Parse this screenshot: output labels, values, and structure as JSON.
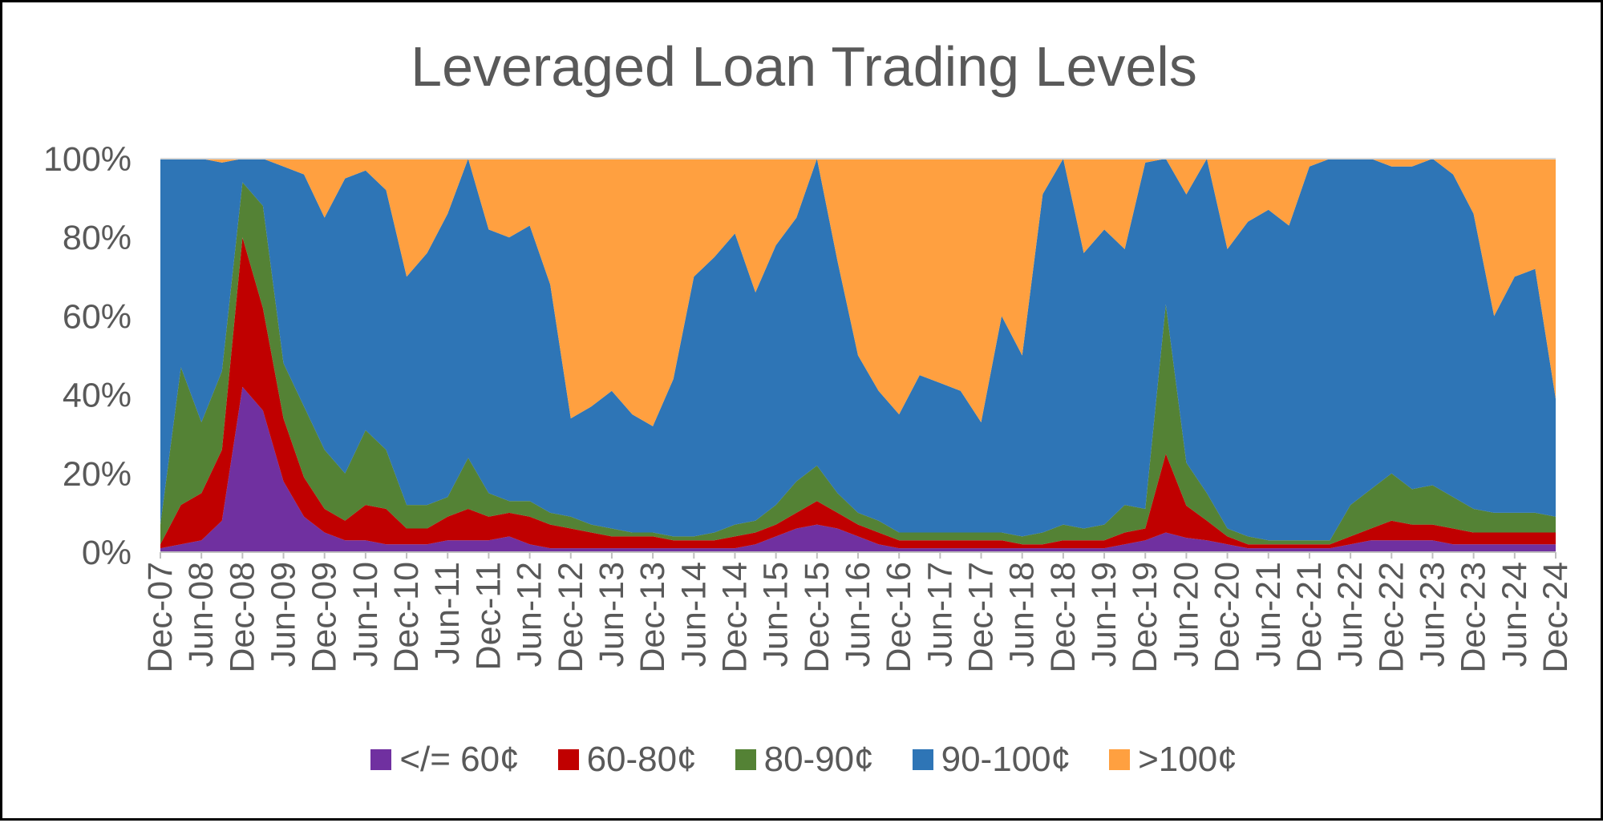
{
  "chart_data": {
    "type": "area",
    "stacked": true,
    "percent": true,
    "title": "Leveraged Loan Trading Levels",
    "xlabel": "",
    "ylabel": "",
    "ylim": [
      0,
      100
    ],
    "y_ticks": [
      "0%",
      "20%",
      "40%",
      "60%",
      "80%",
      "100%"
    ],
    "x_tick_labels": [
      "Dec-07",
      "Jun-08",
      "Dec-08",
      "Jun-09",
      "Dec-09",
      "Jun-10",
      "Dec-10",
      "Jun-11",
      "Dec-11",
      "Jun-12",
      "Dec-12",
      "Jun-13",
      "Dec-13",
      "Jun-14",
      "Dec-14",
      "Jun-15",
      "Dec-15",
      "Jun-16",
      "Dec-16",
      "Jun-17",
      "Dec-17",
      "Jun-18",
      "Dec-18",
      "Jun-19",
      "Dec-19",
      "Jun-20",
      "Dec-20",
      "Jun-21",
      "Dec-21",
      "Jun-22",
      "Dec-22",
      "Jun-23",
      "Dec-23",
      "Jun-24",
      "Dec-24"
    ],
    "legend_position": "bottom",
    "x": [
      "Dec-07",
      "Mar-08",
      "Jun-08",
      "Sep-08",
      "Dec-08",
      "Mar-09",
      "Jun-09",
      "Sep-09",
      "Dec-09",
      "Mar-10",
      "Jun-10",
      "Sep-10",
      "Dec-10",
      "Mar-11",
      "Jun-11",
      "Sep-11",
      "Dec-11",
      "Mar-12",
      "Jun-12",
      "Sep-12",
      "Dec-12",
      "Mar-13",
      "Jun-13",
      "Sep-13",
      "Dec-13",
      "Mar-14",
      "Jun-14",
      "Sep-14",
      "Dec-14",
      "Mar-15",
      "Jun-15",
      "Sep-15",
      "Dec-15",
      "Mar-16",
      "Jun-16",
      "Sep-16",
      "Dec-16",
      "Mar-17",
      "Jun-17",
      "Sep-17",
      "Dec-17",
      "Mar-18",
      "Jun-18",
      "Sep-18",
      "Dec-18",
      "Mar-19",
      "Jun-19",
      "Sep-19",
      "Dec-19",
      "Mar-20",
      "Jun-20",
      "Sep-20",
      "Dec-20",
      "Mar-21",
      "Jun-21",
      "Sep-21",
      "Dec-21",
      "Mar-22",
      "Jun-22",
      "Sep-22",
      "Dec-22",
      "Mar-23",
      "Jun-23",
      "Sep-23",
      "Dec-23",
      "Mar-24",
      "Jun-24",
      "Sep-24",
      "Dec-24"
    ],
    "series": [
      {
        "name": "</= 60¢",
        "color": "#7030a0",
        "values": [
          1,
          2,
          3,
          8,
          42,
          36,
          18,
          9,
          5,
          3,
          3,
          2,
          2,
          2,
          3,
          3,
          3,
          4,
          2,
          1,
          1,
          1,
          1,
          1,
          1,
          1,
          1,
          1,
          1,
          2,
          4,
          6,
          7,
          6,
          4,
          2,
          1,
          1,
          1,
          1,
          1,
          1,
          1,
          1,
          1,
          1,
          1,
          2,
          3,
          5,
          4,
          3,
          2,
          1,
          1,
          1,
          1,
          1,
          2,
          3,
          3,
          3,
          3,
          2,
          2,
          2,
          2,
          2,
          2
        ]
      },
      {
        "name": "60-80¢",
        "color": "#c00000",
        "values": [
          1,
          10,
          12,
          18,
          38,
          26,
          16,
          10,
          6,
          5,
          9,
          9,
          4,
          4,
          6,
          8,
          6,
          6,
          7,
          6,
          5,
          4,
          3,
          3,
          3,
          2,
          2,
          2,
          3,
          3,
          3,
          4,
          6,
          4,
          3,
          3,
          2,
          2,
          2,
          2,
          2,
          2,
          1,
          1,
          2,
          2,
          2,
          3,
          3,
          20,
          9,
          5,
          2,
          1,
          1,
          1,
          1,
          1,
          2,
          3,
          5,
          4,
          4,
          4,
          3,
          3,
          3,
          3,
          3
        ]
      },
      {
        "name": "80-90¢",
        "color": "#548235",
        "values": [
          5,
          35,
          18,
          20,
          14,
          26,
          14,
          18,
          15,
          12,
          19,
          15,
          6,
          6,
          5,
          13,
          6,
          3,
          4,
          3,
          3,
          2,
          2,
          1,
          1,
          1,
          1,
          2,
          3,
          3,
          5,
          8,
          9,
          5,
          3,
          3,
          2,
          2,
          2,
          2,
          2,
          2,
          2,
          3,
          4,
          3,
          4,
          7,
          5,
          38,
          12,
          7,
          2,
          2,
          1,
          1,
          1,
          1,
          8,
          10,
          12,
          9,
          10,
          8,
          6,
          5,
          5,
          5,
          4
        ]
      },
      {
        "name": "90-100¢",
        "color": "#2e75b6",
        "values": [
          93,
          53,
          67,
          53,
          6,
          12,
          50,
          59,
          59,
          75,
          66,
          66,
          58,
          64,
          72,
          76,
          67,
          67,
          70,
          58,
          25,
          30,
          35,
          30,
          27,
          40,
          66,
          70,
          74,
          58,
          66,
          67,
          78,
          59,
          40,
          33,
          30,
          40,
          38,
          36,
          28,
          55,
          46,
          86,
          93,
          70,
          75,
          65,
          88,
          37,
          75,
          85,
          71,
          80,
          84,
          80,
          95,
          97,
          88,
          84,
          78,
          82,
          83,
          82,
          75,
          50,
          60,
          62,
          30
        ]
      },
      {
        "name": ">100¢",
        "color": "#ffa040",
        "values": [
          0,
          0,
          0,
          1,
          0,
          0,
          2,
          4,
          15,
          5,
          3,
          8,
          30,
          24,
          14,
          0,
          18,
          20,
          17,
          32,
          66,
          63,
          59,
          65,
          68,
          56,
          30,
          25,
          19,
          34,
          22,
          15,
          0,
          26,
          50,
          59,
          65,
          55,
          57,
          59,
          67,
          40,
          50,
          9,
          0,
          24,
          18,
          23,
          1,
          0,
          10,
          0,
          23,
          16,
          13,
          17,
          2,
          0,
          0,
          0,
          2,
          2,
          0,
          4,
          14,
          40,
          30,
          28,
          61
        ]
      }
    ]
  }
}
